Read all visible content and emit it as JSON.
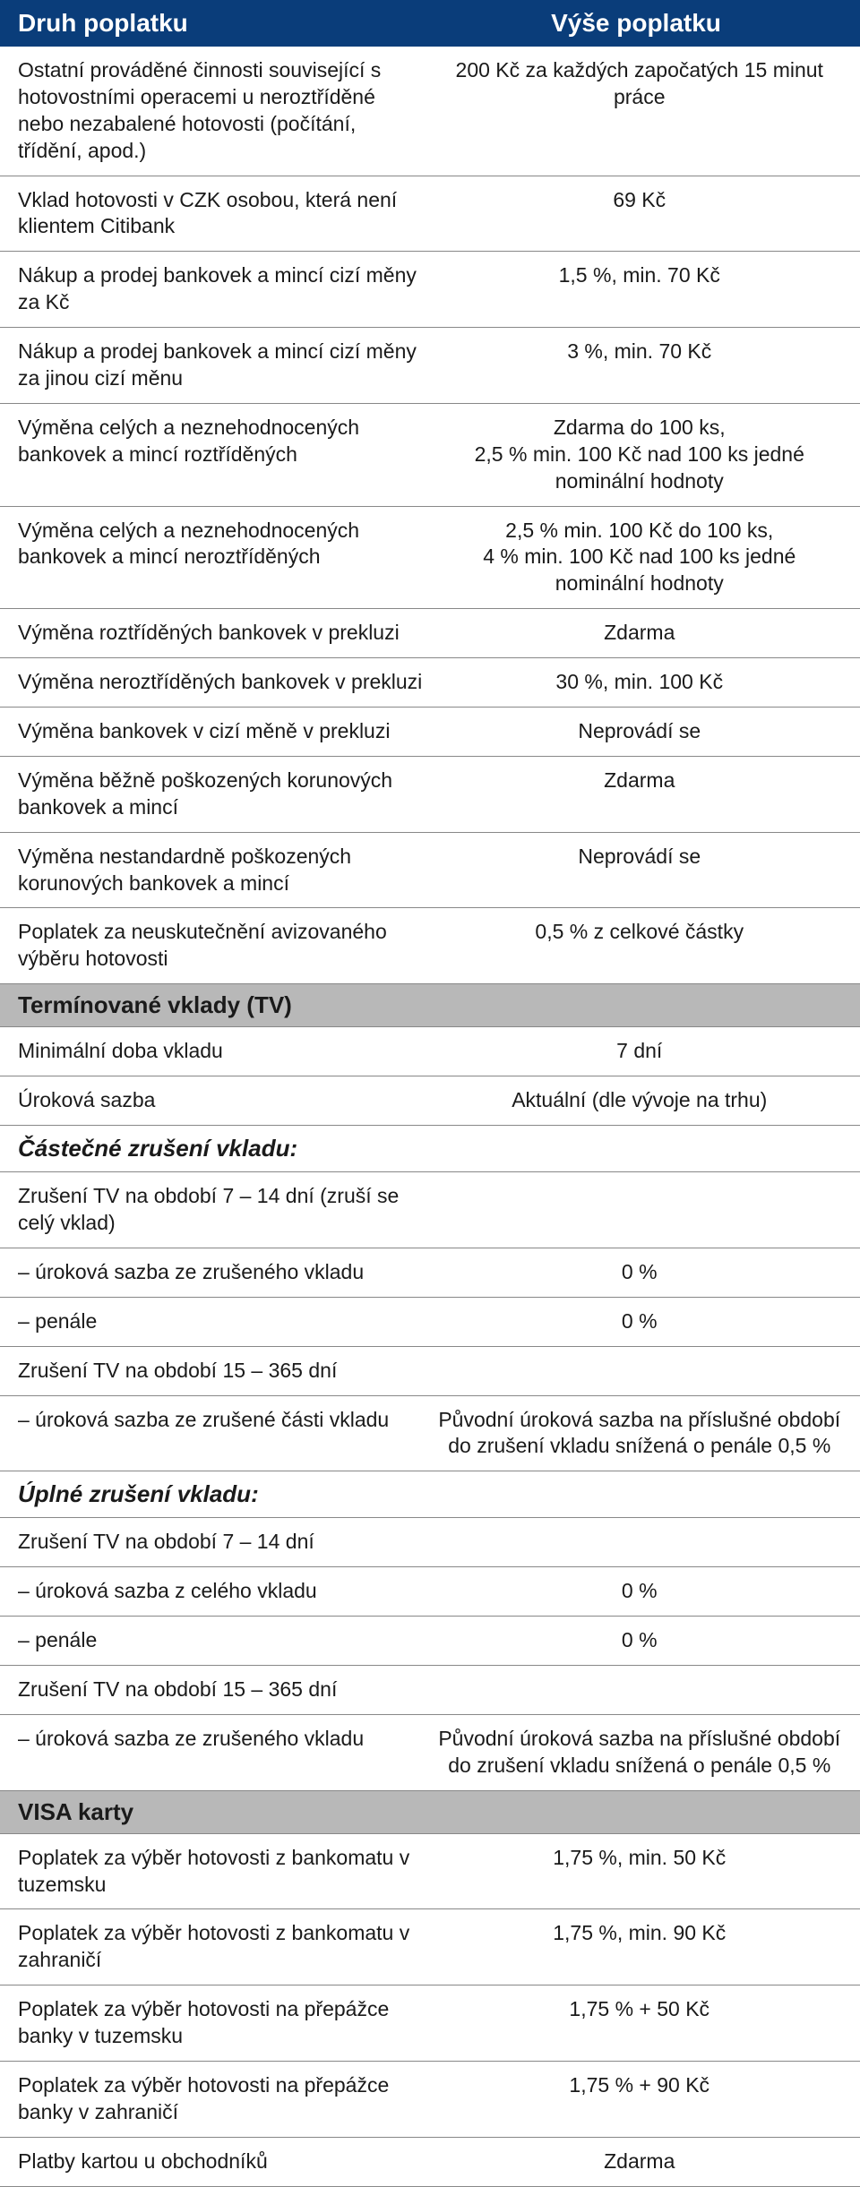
{
  "header": {
    "left": "Druh poplatku",
    "right": "Výše poplatku"
  },
  "colors": {
    "header_bg": "#0a3d7a",
    "header_text": "#ffffff",
    "section_bg": "#b8b8b8",
    "border": "#888888",
    "text": "#1a1a1a"
  },
  "fonts": {
    "header_size": 28,
    "body_size": 23,
    "section_size": 26
  },
  "rows": [
    {
      "type": "row",
      "left": "Ostatní prováděné činnosti související s hotovostními operacemi u neroztříděné nebo nezabalené hotovosti (počítání, třídění, apod.)",
      "right": "200 Kč za každých započatých 15 minut práce"
    },
    {
      "type": "row",
      "left": "Vklad hotovosti v CZK osobou, která není klientem Citibank",
      "right": "69 Kč"
    },
    {
      "type": "row",
      "left": "Nákup a prodej bankovek a mincí cizí měny za Kč",
      "right": "1,5 %, min. 70 Kč"
    },
    {
      "type": "row",
      "left": "Nákup a prodej bankovek a mincí cizí měny za jinou cizí měnu",
      "right": "3 %, min. 70 Kč"
    },
    {
      "type": "row",
      "left": "Výměna celých a neznehodnocených bankovek a mincí roztříděných",
      "right": "Zdarma do 100 ks,\n2,5 % min. 100 Kč nad 100 ks jedné nominální hodnoty"
    },
    {
      "type": "row",
      "left": "Výměna celých a neznehodnocených bankovek a mincí neroztříděných",
      "right": "2,5 % min. 100 Kč do 100 ks,\n4 % min. 100 Kč nad 100 ks jedné nominální hodnoty"
    },
    {
      "type": "row",
      "left": "Výměna roztříděných bankovek v prekluzi",
      "right": "Zdarma"
    },
    {
      "type": "row",
      "left": "Výměna neroztříděných bankovek v prekluzi",
      "right": "30 %, min. 100 Kč"
    },
    {
      "type": "row",
      "left": "Výměna bankovek v cizí měně v prekluzi",
      "right": "Neprovádí se"
    },
    {
      "type": "row",
      "left": "Výměna běžně poškozených korunových bankovek a mincí",
      "right": "Zdarma"
    },
    {
      "type": "row",
      "left": "Výměna nestandardně poškozených korunových bankovek a mincí",
      "right": "Neprovádí se"
    },
    {
      "type": "row",
      "left": "Poplatek za neuskutečnění avizovaného výběru hotovosti",
      "right": "0,5 % z celkové částky"
    },
    {
      "type": "section",
      "label": "Termínované vklady (TV)"
    },
    {
      "type": "row",
      "left": "Minimální doba vkladu",
      "right": "7 dní"
    },
    {
      "type": "row",
      "left": "Úroková sazba",
      "right": "Aktuální (dle vývoje na trhu)"
    },
    {
      "type": "subsection",
      "label": "Částečné zrušení vkladu:"
    },
    {
      "type": "row",
      "left": "Zrušení TV na období 7 – 14 dní (zruší se celý vklad)",
      "right": ""
    },
    {
      "type": "row",
      "left": "– úroková sazba ze zrušeného vkladu",
      "right": "0 %"
    },
    {
      "type": "row",
      "left": "– penále",
      "right": "0 %"
    },
    {
      "type": "row",
      "left": "Zrušení TV na období 15 – 365 dní",
      "right": ""
    },
    {
      "type": "row",
      "left": "– úroková sazba ze zrušené části vkladu",
      "right": "Původní úroková sazba na příslušné období do zrušení vkladu snížená o penále 0,5 %"
    },
    {
      "type": "subsection",
      "label": "Úplné zrušení vkladu:"
    },
    {
      "type": "row",
      "left": "Zrušení TV na období 7 – 14 dní",
      "right": ""
    },
    {
      "type": "row",
      "left": "– úroková sazba z celého vkladu",
      "right": "0 %"
    },
    {
      "type": "row",
      "left": "– penále",
      "right": "0 %"
    },
    {
      "type": "row",
      "left": "Zrušení TV na období 15 – 365 dní",
      "right": ""
    },
    {
      "type": "row",
      "left": "– úroková sazba ze zrušeného vkladu",
      "right": "Původní úroková sazba na příslušné období do zrušení vkladu snížená o penále 0,5 %"
    },
    {
      "type": "section",
      "label": "VISA karty"
    },
    {
      "type": "row",
      "left": "Poplatek za výběr hotovosti z bankomatu v tuzemsku",
      "right": "1,75 %, min. 50 Kč"
    },
    {
      "type": "row",
      "left": "Poplatek za výběr hotovosti z bankomatu v zahraničí",
      "right": "1,75 %, min. 90 Kč"
    },
    {
      "type": "row",
      "left": "Poplatek za výběr hotovosti na přepážce banky v tuzemsku",
      "right": "1,75 % +  50 Kč"
    },
    {
      "type": "row",
      "left": "Poplatek za výběr hotovosti na přepážce banky v zahraničí",
      "right": "1,75 % +  90 Kč"
    },
    {
      "type": "row",
      "left": "Platby kartou u obchodníků",
      "right": "Zdarma"
    }
  ]
}
